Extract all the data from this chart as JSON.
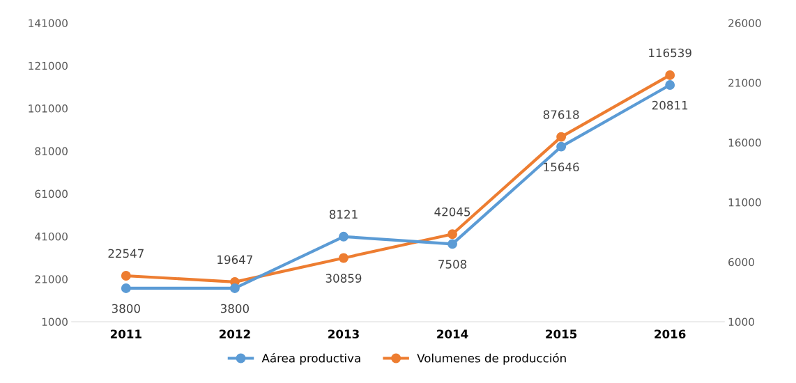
{
  "chart_data": {
    "type": "line",
    "categories": [
      "2011",
      "2012",
      "2013",
      "2014",
      "2015",
      "2016"
    ],
    "series": [
      {
        "name": "Aárea productiva",
        "color": "#5b9bd5",
        "axis": "y2",
        "values": [
          3800,
          3800,
          8121,
          7508,
          15646,
          20811
        ]
      },
      {
        "name": "Volumenes de producción",
        "color": "#ed7d31",
        "values": [
          22547,
          19647,
          30859,
          42045,
          87618,
          116539
        ]
      }
    ],
    "ylim": [
      1000,
      141000
    ],
    "yticks": [
      1000,
      21000,
      41000,
      61000,
      81000,
      101000,
      121000,
      141000
    ],
    "y2lim": [
      1000,
      26000
    ],
    "y2ticks": [
      1000,
      6000,
      11000,
      16000,
      21000,
      26000
    ],
    "data_labels": true,
    "legend": "bottom",
    "grid": false,
    "marker": "circle",
    "line_style": "solid"
  }
}
